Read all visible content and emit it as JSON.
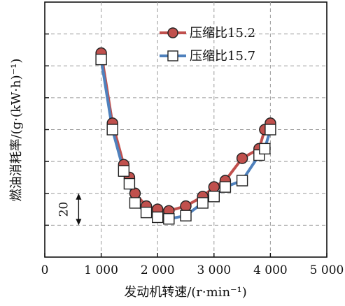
{
  "chart_data": {
    "type": "line",
    "xlabel": "发动机转速/(r·min⁻¹)",
    "ylabel": "燃油消耗率/(g·(kW·h)⁻¹)",
    "xlim": [
      0,
      5000
    ],
    "ylim": [
      0,
      8
    ],
    "x_ticks": [
      0,
      1000,
      2000,
      3000,
      4000,
      5000
    ],
    "x_tick_labels": [
      "0",
      "1 000",
      "2 000",
      "3 000",
      "4 000",
      "5 000"
    ],
    "y_tick_labels_shown": false,
    "grid": true,
    "grid_style": "dashed",
    "legend_position": "top-right",
    "annotation": {
      "text": "20",
      "from_y": 2,
      "to_y": 1,
      "x": 600
    },
    "series": [
      {
        "name": "压缩比15.2",
        "color": "#c0504d",
        "marker": "circle",
        "x": [
          1000,
          1200,
          1400,
          1500,
          1600,
          1800,
          2000,
          2200,
          2500,
          2800,
          3000,
          3200,
          3500,
          3800,
          3900,
          4000
        ],
        "y": [
          6.4,
          4.2,
          2.9,
          2.5,
          2.0,
          1.6,
          1.5,
          1.45,
          1.6,
          1.9,
          2.2,
          2.4,
          3.1,
          3.4,
          4.0,
          4.2
        ]
      },
      {
        "name": "压缩比15.7",
        "color": "#4f81bd",
        "marker": "square",
        "x": [
          1000,
          1200,
          1400,
          1500,
          1600,
          1800,
          2000,
          2200,
          2500,
          2800,
          3000,
          3200,
          3500,
          3800,
          3900,
          4000
        ],
        "y": [
          6.2,
          4.0,
          2.7,
          2.3,
          1.7,
          1.4,
          1.25,
          1.2,
          1.3,
          1.7,
          1.9,
          2.2,
          2.4,
          3.2,
          3.4,
          4.0
        ]
      }
    ]
  },
  "legend": {
    "items": [
      {
        "label": "压缩比15.2"
      },
      {
        "label": "压缩比15.7"
      }
    ]
  }
}
